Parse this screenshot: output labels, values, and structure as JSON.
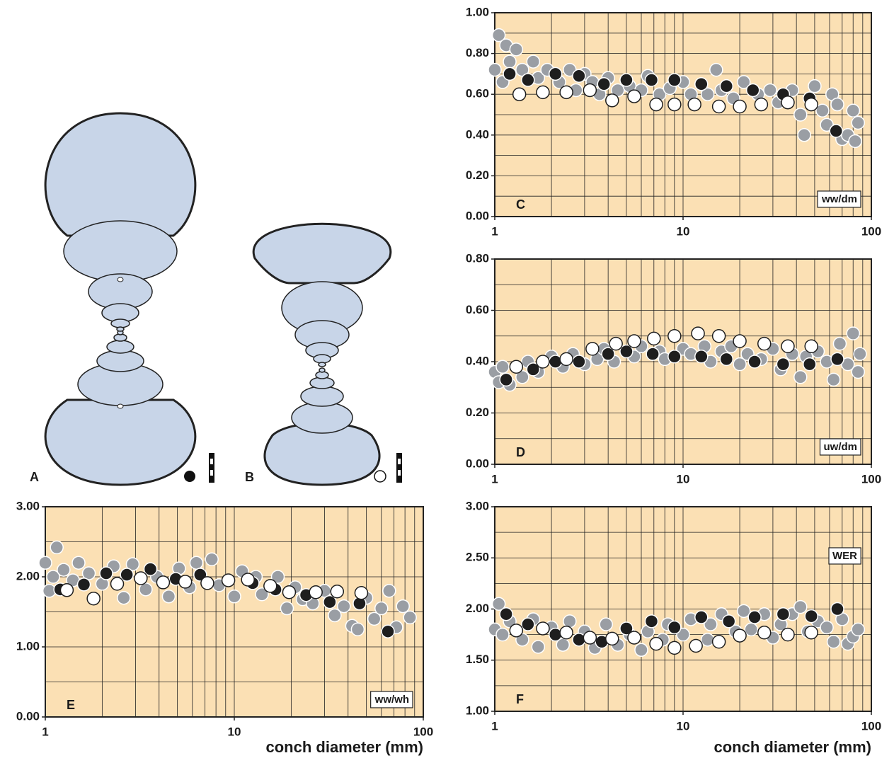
{
  "diagrams": [
    {
      "label": "A"
    },
    {
      "label": "B"
    }
  ],
  "chart_data": [
    {
      "type": "scatter",
      "panel_label": "C",
      "variable_label": "ww/dm",
      "log_x": true,
      "grid": true,
      "minor_grid": true,
      "background": "#fbe0b4",
      "xlim": [
        1,
        100
      ],
      "xticks": [
        1,
        10,
        100
      ],
      "ylim": [
        0,
        1
      ],
      "yticks": [
        {
          "value": 0,
          "label": "0.00"
        },
        {
          "value": 0.2,
          "label": "0.20"
        },
        {
          "value": 0.4,
          "label": "0.40"
        },
        {
          "value": 0.6,
          "label": "0.60"
        },
        {
          "value": 0.8,
          "label": "0.80"
        },
        {
          "value": 1,
          "label": "1.00"
        }
      ],
      "series": [
        {
          "color": "#9a9ea4",
          "edgecolor": "#ffffff",
          "x": [
            1,
            1.05,
            1.1,
            1.15,
            1.3,
            1.2,
            1.4,
            1.6,
            1.7,
            1.9,
            2.2,
            2.5,
            2.7,
            3,
            3.3,
            3.6,
            4,
            4.5,
            5.2,
            6,
            6.5,
            7.5,
            8.5,
            10,
            11,
            13.5,
            15,
            16,
            18.5,
            21,
            25,
            29,
            32,
            38,
            42,
            44,
            50,
            55,
            58,
            62,
            66,
            70,
            75,
            80,
            82,
            85
          ],
          "values": [
            0.72,
            0.89,
            0.66,
            0.84,
            0.82,
            0.76,
            0.72,
            0.76,
            0.68,
            0.72,
            0.66,
            0.72,
            0.62,
            0.7,
            0.66,
            0.6,
            0.68,
            0.62,
            0.64,
            0.62,
            0.69,
            0.6,
            0.63,
            0.66,
            0.6,
            0.6,
            0.72,
            0.62,
            0.58,
            0.66,
            0.6,
            0.62,
            0.56,
            0.62,
            0.5,
            0.4,
            0.64,
            0.52,
            0.45,
            0.6,
            0.55,
            0.38,
            0.4,
            0.52,
            0.37,
            0.46
          ]
        },
        {
          "color": "#1e1e1e",
          "edgecolor": "#ffffff",
          "x": [
            1.2,
            1.5,
            2.1,
            2.8,
            3.8,
            5,
            6.8,
            9,
            12.5,
            17,
            23.5,
            34,
            47,
            65
          ],
          "values": [
            0.7,
            0.67,
            0.7,
            0.69,
            0.65,
            0.67,
            0.67,
            0.67,
            0.65,
            0.64,
            0.62,
            0.6,
            0.58,
            0.42
          ]
        },
        {
          "color": "#ffffff",
          "edgecolor": "#1e1e1e",
          "x": [
            1.35,
            1.8,
            2.4,
            3.2,
            4.2,
            5.5,
            7.2,
            9,
            11.5,
            15.5,
            20,
            26,
            36,
            48
          ],
          "values": [
            0.6,
            0.61,
            0.61,
            0.62,
            0.57,
            0.59,
            0.55,
            0.55,
            0.55,
            0.54,
            0.54,
            0.55,
            0.56,
            0.55
          ]
        }
      ]
    },
    {
      "type": "scatter",
      "panel_label": "D",
      "variable_label": "uw/dm",
      "log_x": true,
      "grid": true,
      "minor_grid": true,
      "background": "#fbe0b4",
      "xlim": [
        1,
        100
      ],
      "xticks": [
        1,
        10,
        100
      ],
      "ylim": [
        0,
        0.8
      ],
      "yticks": [
        {
          "value": 0,
          "label": "0.00"
        },
        {
          "value": 0.2,
          "label": "0.20"
        },
        {
          "value": 0.4,
          "label": "0.40"
        },
        {
          "value": 0.6,
          "label": "0.60"
        },
        {
          "value": 0.8,
          "label": "0.80"
        }
      ],
      "series": [
        {
          "color": "#9a9ea4",
          "edgecolor": "#ffffff",
          "x": [
            1,
            1.05,
            1.1,
            1.2,
            1.4,
            1.5,
            1.7,
            2,
            2.3,
            2.6,
            3,
            3.5,
            3.8,
            4.3,
            5.5,
            6,
            7.5,
            8,
            10,
            11,
            13,
            14,
            16,
            18,
            20,
            22,
            26,
            30,
            33,
            38,
            42,
            45,
            52,
            58,
            63,
            68,
            75,
            80,
            85,
            87
          ],
          "values": [
            0.36,
            0.32,
            0.38,
            0.31,
            0.34,
            0.4,
            0.36,
            0.42,
            0.38,
            0.43,
            0.39,
            0.41,
            0.45,
            0.4,
            0.42,
            0.46,
            0.44,
            0.41,
            0.45,
            0.43,
            0.46,
            0.4,
            0.44,
            0.46,
            0.39,
            0.43,
            0.41,
            0.45,
            0.37,
            0.43,
            0.34,
            0.42,
            0.44,
            0.4,
            0.33,
            0.47,
            0.39,
            0.51,
            0.36,
            0.43
          ]
        },
        {
          "color": "#1e1e1e",
          "edgecolor": "#ffffff",
          "x": [
            1.15,
            1.6,
            2.1,
            2.8,
            4,
            5,
            6.9,
            9,
            12.5,
            17,
            24,
            34,
            47,
            66
          ],
          "values": [
            0.33,
            0.37,
            0.4,
            0.4,
            0.43,
            0.44,
            0.43,
            0.42,
            0.42,
            0.41,
            0.4,
            0.39,
            0.39,
            0.41
          ]
        },
        {
          "color": "#ffffff",
          "edgecolor": "#1e1e1e",
          "x": [
            1.3,
            1.8,
            2.4,
            3.3,
            4.4,
            5.5,
            7,
            9,
            12,
            15.5,
            20,
            27,
            36,
            48
          ],
          "values": [
            0.38,
            0.4,
            0.41,
            0.45,
            0.47,
            0.48,
            0.49,
            0.5,
            0.51,
            0.5,
            0.48,
            0.47,
            0.46,
            0.46
          ]
        }
      ]
    },
    {
      "type": "scatter",
      "panel_label": "E",
      "variable_label": "ww/wh",
      "x_label": "conch diameter (mm)",
      "log_x": true,
      "grid": true,
      "minor_grid": true,
      "background": "#fbe0b4",
      "xlim": [
        1,
        100
      ],
      "xticks": [
        1,
        10,
        100
      ],
      "ylim": [
        0,
        3
      ],
      "yticks": [
        {
          "value": 0,
          "label": "0.00"
        },
        {
          "value": 1,
          "label": "1.00"
        },
        {
          "value": 2,
          "label": "2.00"
        },
        {
          "value": 3,
          "label": "3.00"
        }
      ],
      "series": [
        {
          "color": "#9a9ea4",
          "edgecolor": "#ffffff",
          "x": [
            1,
            1.05,
            1.1,
            1.15,
            1.25,
            1.4,
            1.5,
            1.7,
            2,
            2.3,
            2.6,
            2.9,
            3.4,
            3.9,
            4.5,
            5.1,
            5.8,
            6.3,
            7.6,
            8.3,
            10,
            11,
            13,
            14,
            17,
            19,
            21,
            23,
            26,
            30,
            34,
            38,
            42,
            45,
            50,
            55,
            60,
            66,
            72,
            78,
            85
          ],
          "values": [
            2.2,
            1.8,
            2.0,
            2.42,
            2.1,
            1.95,
            2.2,
            2.05,
            1.9,
            2.15,
            1.7,
            2.18,
            1.82,
            2.0,
            1.72,
            2.12,
            1.85,
            2.2,
            2.25,
            1.88,
            1.72,
            2.08,
            2.0,
            1.75,
            2.0,
            1.55,
            1.85,
            1.68,
            1.62,
            1.8,
            1.45,
            1.58,
            1.3,
            1.25,
            1.7,
            1.4,
            1.55,
            1.8,
            1.28,
            1.58,
            1.42
          ]
        },
        {
          "color": "#1e1e1e",
          "edgecolor": "#ffffff",
          "x": [
            1.2,
            1.6,
            2.1,
            2.7,
            3.6,
            4.9,
            6.6,
            12.5,
            16.5,
            24,
            32,
            46,
            65
          ],
          "values": [
            1.82,
            1.89,
            2.05,
            2.03,
            2.11,
            1.97,
            2.03,
            1.91,
            1.82,
            1.74,
            1.64,
            1.62,
            1.22
          ]
        },
        {
          "color": "#ffffff",
          "edgecolor": "#1e1e1e",
          "x": [
            1.3,
            1.8,
            2.4,
            3.2,
            4.2,
            5.5,
            7.2,
            9.3,
            11.8,
            15.5,
            19.5,
            27,
            35,
            47
          ],
          "values": [
            1.81,
            1.69,
            1.9,
            1.98,
            1.92,
            1.93,
            1.91,
            1.95,
            1.96,
            1.87,
            1.78,
            1.78,
            1.79,
            1.77
          ]
        }
      ]
    },
    {
      "type": "scatter",
      "panel_label": "F",
      "variable_label": "WER",
      "x_label": "conch diameter (mm)",
      "log_x": true,
      "grid": true,
      "minor_grid": true,
      "background": "#fbe0b4",
      "xlim": [
        1,
        100
      ],
      "xticks": [
        1,
        10,
        100
      ],
      "ylim": [
        1,
        3
      ],
      "yticks": [
        {
          "value": 1,
          "label": "1.00"
        },
        {
          "value": 1.5,
          "label": "1.50"
        },
        {
          "value": 2,
          "label": "2.00"
        },
        {
          "value": 2.5,
          "label": "2.50"
        },
        {
          "value": 3,
          "label": "3.00"
        }
      ],
      "series": [
        {
          "color": "#9a9ea4",
          "edgecolor": "#ffffff",
          "x": [
            1,
            1.05,
            1.1,
            1.2,
            1.4,
            1.6,
            1.7,
            2,
            2.3,
            2.5,
            3,
            3.4,
            3.9,
            4.5,
            5.2,
            6,
            6.5,
            7.8,
            8.3,
            10,
            11,
            13.5,
            14,
            16,
            19,
            21,
            23,
            27,
            30,
            33,
            38,
            42,
            46,
            52,
            58,
            63,
            70,
            75,
            80,
            85
          ],
          "values": [
            1.8,
            2.05,
            1.75,
            1.88,
            1.7,
            1.9,
            1.63,
            1.82,
            1.65,
            1.88,
            1.78,
            1.62,
            1.85,
            1.65,
            1.75,
            1.6,
            1.78,
            1.7,
            1.85,
            1.75,
            1.9,
            1.7,
            1.85,
            1.95,
            1.78,
            1.98,
            1.8,
            1.95,
            1.72,
            1.85,
            1.95,
            2.02,
            1.78,
            1.88,
            1.82,
            1.68,
            1.9,
            1.66,
            1.73,
            1.8
          ]
        },
        {
          "color": "#1e1e1e",
          "edgecolor": "#ffffff",
          "x": [
            1.15,
            1.5,
            2.1,
            2.8,
            3.7,
            5,
            6.8,
            9,
            12.5,
            17.5,
            24,
            34,
            48,
            66
          ],
          "values": [
            1.95,
            1.85,
            1.75,
            1.7,
            1.68,
            1.81,
            1.88,
            1.82,
            1.92,
            1.88,
            1.92,
            1.95,
            1.93,
            2.0
          ]
        },
        {
          "color": "#ffffff",
          "edgecolor": "#1e1e1e",
          "x": [
            1.3,
            1.8,
            2.4,
            3.2,
            4.2,
            5.5,
            7.2,
            9,
            11.7,
            15.5,
            20,
            27,
            36,
            48
          ],
          "values": [
            1.79,
            1.81,
            1.77,
            1.72,
            1.71,
            1.72,
            1.66,
            1.62,
            1.64,
            1.68,
            1.74,
            1.77,
            1.75,
            1.77
          ]
        }
      ]
    }
  ]
}
